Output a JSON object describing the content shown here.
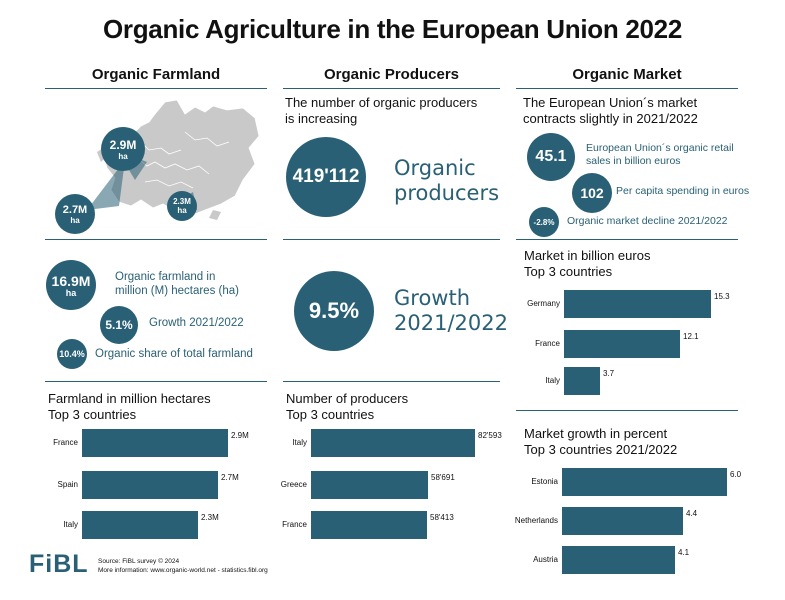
{
  "title": "Organic Agriculture in the European Union 2022",
  "columns": {
    "farmland": "Organic Farmland",
    "producers": "Organic Producers",
    "market": "Organic Market"
  },
  "map": {
    "bubbles": [
      {
        "value": "2.9M",
        "unit": "ha"
      },
      {
        "value": "2.7M",
        "unit": "ha"
      },
      {
        "value": "2.3M",
        "unit": "ha"
      }
    ]
  },
  "farmland_stats": {
    "area": {
      "value": "16.9M",
      "unit": "ha",
      "label_line1": "Organic farmland in",
      "label_line2": "million (M) hectares (ha)"
    },
    "growth": {
      "value": "5.1%",
      "label": "Growth 2021/2022"
    },
    "share": {
      "value": "10.4%",
      "label": "Organic share of total farmland"
    }
  },
  "producers_stats": {
    "intro_line1": "The number of organic producers",
    "intro_line2": "is increasing",
    "count": {
      "value": "419'112",
      "label_line1": "Organic",
      "label_line2": "producers"
    },
    "growth": {
      "value": "9.5%",
      "label_line1": "Growth",
      "label_line2": "2021/2022"
    }
  },
  "market_stats": {
    "intro_line1": "The European Union´s market",
    "intro_line2": "contracts slightly in 2021/2022",
    "retail": {
      "value": "45.1",
      "label_line1": "European Union´s organic retail",
      "label_line2": "sales in billion euros"
    },
    "per_capita": {
      "value": "102",
      "label": "Per capita spending in euros"
    },
    "decline": {
      "value": "-2.8%",
      "label": "Organic market decline 2021/2022"
    }
  },
  "colors": {
    "accent": "#2a6076"
  },
  "chart_data": [
    {
      "type": "bar",
      "title_line1": "Farmland in million hectares",
      "title_line2": "Top 3 countries",
      "categories": [
        "France",
        "Spain",
        "Italy"
      ],
      "values": [
        2.9,
        2.7,
        2.3
      ],
      "value_labels": [
        "2.9M",
        "2.7M",
        "2.3M"
      ],
      "xlim": [
        0,
        2.9
      ]
    },
    {
      "type": "bar",
      "title_line1": "Number of producers",
      "title_line2": "Top 3 countries",
      "categories": [
        "Italy",
        "Greece",
        "France"
      ],
      "values": [
        82593,
        58691,
        58413
      ],
      "value_labels": [
        "82'593",
        "58'691",
        "58'413"
      ],
      "xlim": [
        0,
        82593
      ]
    },
    {
      "type": "bar",
      "title_line1": "Market in billion euros",
      "title_line2": "Top 3 countries",
      "categories": [
        "Germany",
        "France",
        "Italy"
      ],
      "values": [
        15.3,
        12.1,
        3.7
      ],
      "value_labels": [
        "15.3",
        "12.1",
        "3.7"
      ],
      "xlim": [
        0,
        15.3
      ]
    },
    {
      "type": "bar",
      "title_line1": "Market growth in percent",
      "title_line2": "Top 3 countries 2021/2022",
      "categories": [
        "Estonia",
        "Netherlands",
        "Austria"
      ],
      "values": [
        6.0,
        4.4,
        4.1
      ],
      "value_labels": [
        "6.0",
        "4.4",
        "4.1"
      ],
      "xlim": [
        0,
        6.0
      ]
    }
  ],
  "footer": {
    "logo": "FiBL",
    "source": "Source: FiBL survey © 2024",
    "more": "More information: www.organic-world.net - statistics.fibl.org"
  }
}
